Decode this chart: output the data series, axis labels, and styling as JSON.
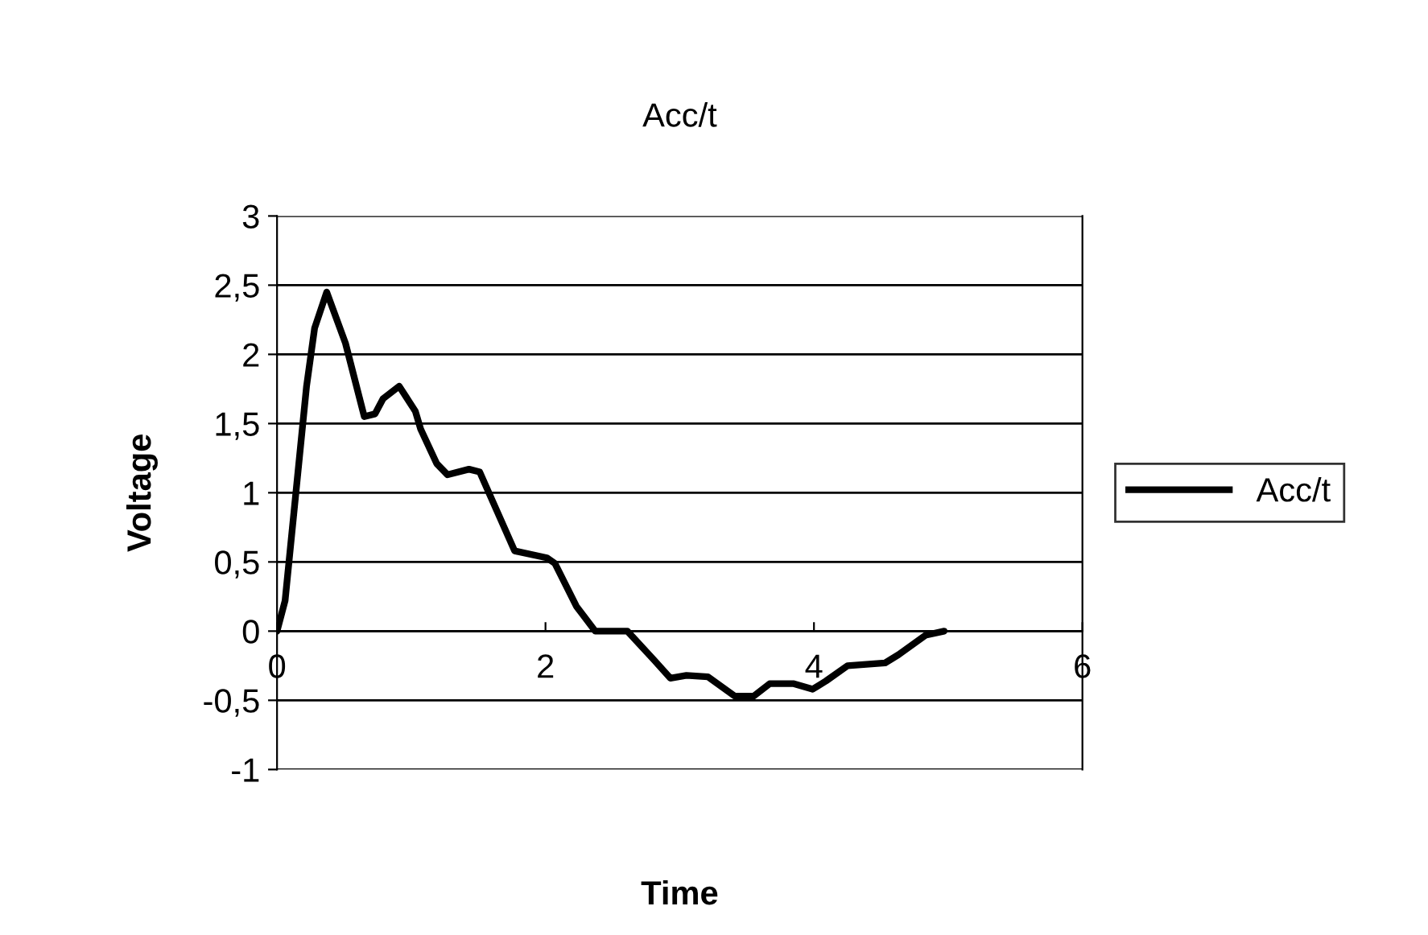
{
  "chart_data": {
    "type": "line",
    "title": "Acc/t",
    "xlabel": "Time",
    "ylabel": "Voltage",
    "xlim": [
      0,
      6
    ],
    "xticks": [
      0,
      2,
      4,
      6
    ],
    "ylim": [
      -1,
      3
    ],
    "yticks": [
      {
        "value": -1,
        "label": "-1"
      },
      {
        "value": -0.5,
        "label": "-0,5"
      },
      0,
      {
        "value": 0.5,
        "label": "0,5"
      },
      1,
      {
        "value": 1.5,
        "label": "1,5"
      },
      2,
      {
        "value": 2.5,
        "label": "2,5"
      },
      3
    ],
    "grid": "y",
    "legend": "right",
    "marker": "none",
    "line_style": "solid",
    "series": [
      {
        "name": "Acc/t",
        "color": "#000000",
        "x": [
          0,
          0.06,
          0.22,
          0.28,
          0.37,
          0.51,
          0.65,
          0.73,
          0.79,
          0.91,
          1.03,
          1.07,
          1.19,
          1.27,
          1.43,
          1.51,
          1.61,
          1.77,
          2.01,
          2.07,
          2.23,
          2.37,
          2.61,
          2.81,
          2.93,
          3.05,
          3.21,
          3.41,
          3.55,
          3.67,
          3.85,
          3.99,
          4.09,
          4.25,
          4.53,
          4.63,
          4.83,
          4.97
        ],
        "values": [
          0,
          0.22,
          1.77,
          2.19,
          2.45,
          2.08,
          1.55,
          1.57,
          1.68,
          1.77,
          1.59,
          1.46,
          1.21,
          1.13,
          1.17,
          1.15,
          0.93,
          0.58,
          0.53,
          0.49,
          0.18,
          0,
          0,
          -0.21,
          -0.34,
          -0.32,
          -0.33,
          -0.47,
          -0.47,
          -0.38,
          -0.38,
          -0.42,
          -0.36,
          -0.25,
          -0.23,
          -0.17,
          -0.03,
          0
        ]
      }
    ]
  }
}
